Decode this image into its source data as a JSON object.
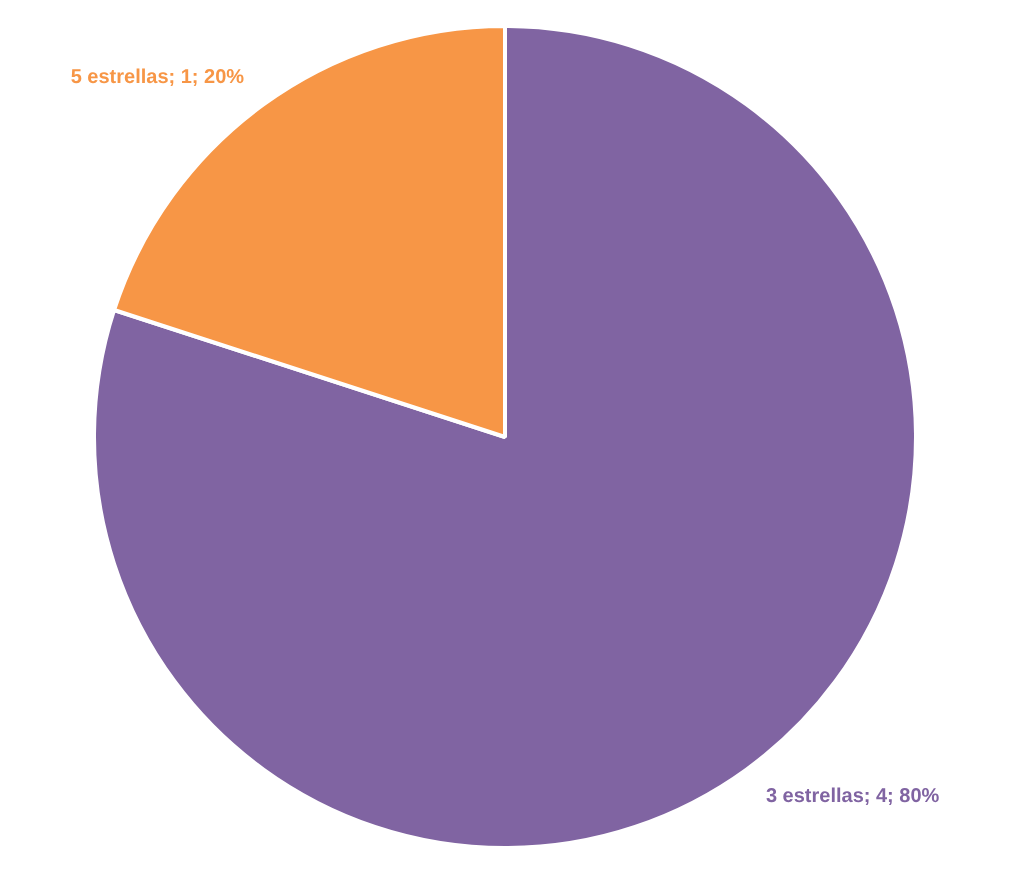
{
  "chart_data": {
    "type": "pie",
    "categories": [
      "3 estrellas",
      "5 estrellas"
    ],
    "values": [
      4,
      1
    ],
    "colors": [
      "#8064a2",
      "#f79646"
    ],
    "value_labels": [
      "; 4; 80%",
      "; 1; 20%"
    ],
    "legend": false
  }
}
